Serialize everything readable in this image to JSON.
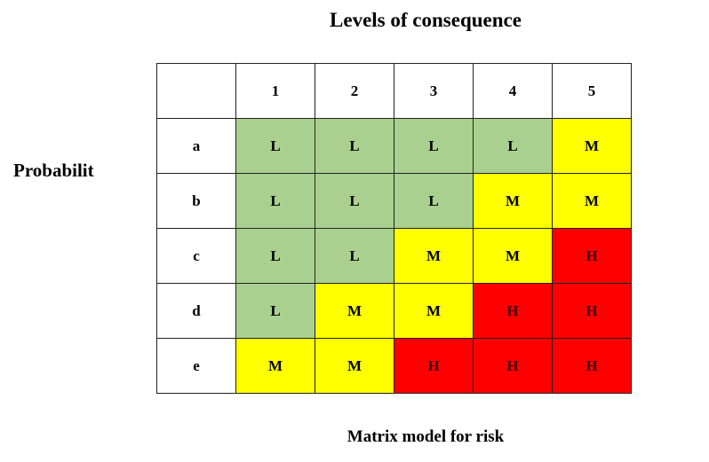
{
  "chart_data": {
    "type": "heatmap",
    "title": "Levels of consequence",
    "xlabel": "Levels of consequence",
    "ylabel": "Probabilit",
    "caption": "Matrix model for risk",
    "columns": [
      "1",
      "2",
      "3",
      "4",
      "5"
    ],
    "rows": [
      "a",
      "b",
      "c",
      "d",
      "e"
    ],
    "values": [
      [
        "L",
        "L",
        "L",
        "L",
        "M"
      ],
      [
        "L",
        "L",
        "L",
        "M",
        "M"
      ],
      [
        "L",
        "L",
        "M",
        "M",
        "H"
      ],
      [
        "L",
        "M",
        "M",
        "H",
        "H"
      ],
      [
        "M",
        "M",
        "H",
        "H",
        "H"
      ]
    ],
    "legend_colors": {
      "L": "#a9d08e",
      "M": "#ffff00",
      "H": "#ff0000"
    }
  }
}
